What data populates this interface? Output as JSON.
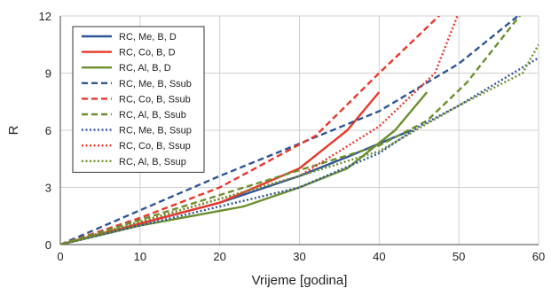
{
  "chart_data": {
    "type": "line",
    "xlabel": "Vrijeme [godina]",
    "ylabel": "R",
    "xlim": [
      0,
      60
    ],
    "ylim": [
      0,
      12
    ],
    "xticks": [
      0,
      10,
      20,
      30,
      40,
      50,
      60
    ],
    "yticks": [
      0,
      3,
      6,
      9,
      12
    ],
    "grid": true,
    "legend_position": "top-left",
    "series": [
      {
        "name": "RC, Me, B, D",
        "color": "#2f5597",
        "dash": "solid",
        "x": [
          0,
          10,
          20,
          30,
          36,
          40,
          44
        ],
        "y": [
          0,
          1.1,
          2.2,
          3.6,
          4.6,
          5.3,
          6.0
        ]
      },
      {
        "name": "RC, Co, B, D",
        "color": "#e8382a",
        "dash": "solid",
        "x": [
          0,
          10,
          20,
          30,
          36,
          40
        ],
        "y": [
          0,
          1.1,
          2.2,
          4.0,
          6.0,
          8.0
        ]
      },
      {
        "name": "RC, Al, B, D",
        "color": "#6c8f2e",
        "dash": "solid",
        "x": [
          0,
          10,
          23,
          30,
          36,
          42,
          46
        ],
        "y": [
          0,
          1.0,
          2.0,
          3.0,
          4.0,
          6.0,
          8.0
        ]
      },
      {
        "name": "RC, Me, B, Ssub",
        "color": "#2f5597",
        "dash": "dashed",
        "x": [
          0,
          10,
          20,
          30,
          40,
          50,
          58
        ],
        "y": [
          0,
          1.8,
          3.6,
          5.3,
          7.0,
          9.5,
          12.2
        ]
      },
      {
        "name": "RC, Co, B, Ssub",
        "color": "#e8382a",
        "dash": "dashed",
        "x": [
          0,
          10,
          20,
          32,
          40,
          45,
          48
        ],
        "y": [
          0,
          1.4,
          3.0,
          5.7,
          9.0,
          11.0,
          12.2
        ]
      },
      {
        "name": "RC, Al, B, Ssub",
        "color": "#6c8f2e",
        "dash": "dashed",
        "x": [
          0,
          10,
          20,
          30,
          40,
          46,
          51,
          58
        ],
        "y": [
          0,
          1.3,
          2.6,
          3.9,
          5.2,
          6.5,
          8.5,
          12.2
        ]
      },
      {
        "name": "RC, Me, B, Ssup",
        "color": "#2f5597",
        "dash": "dotted",
        "x": [
          0,
          10,
          20,
          30,
          40,
          45,
          50,
          60
        ],
        "y": [
          0,
          1.0,
          2.0,
          3.0,
          4.8,
          6.2,
          7.3,
          9.8
        ]
      },
      {
        "name": "RC, Co, B, Ssup",
        "color": "#e8382a",
        "dash": "dotted",
        "x": [
          0,
          10,
          20,
          30,
          40,
          47,
          50
        ],
        "y": [
          0,
          1.2,
          2.4,
          3.6,
          6.2,
          9.0,
          12.2
        ]
      },
      {
        "name": "RC, Al, B, Ssup",
        "color": "#6c8f2e",
        "dash": "dotted",
        "x": [
          0,
          10,
          20,
          30,
          40,
          45,
          50,
          58,
          60
        ],
        "y": [
          0,
          1.2,
          2.4,
          3.6,
          4.9,
          6.1,
          7.3,
          9.0,
          10.5
        ]
      }
    ]
  }
}
